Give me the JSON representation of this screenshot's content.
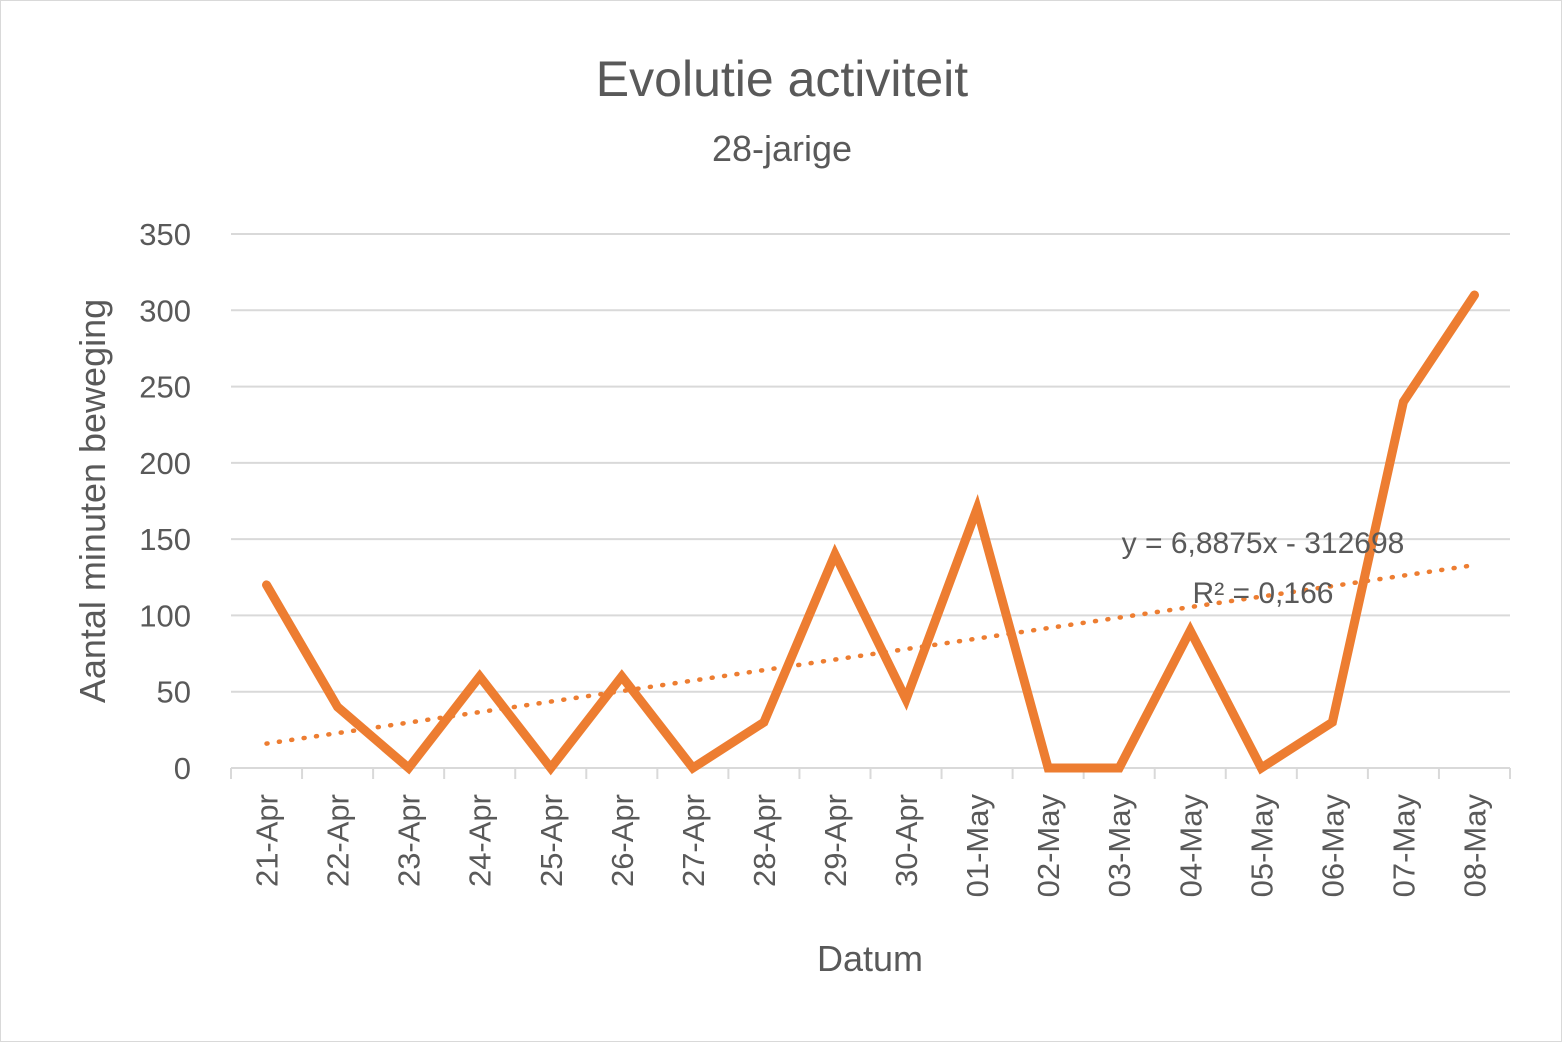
{
  "chart_data": {
    "type": "line",
    "title": "Evolutie activiteit",
    "subtitle": "28-jarige",
    "xlabel": "Datum",
    "ylabel": "Aantal minuten beweging",
    "categories": [
      "21-Apr",
      "22-Apr",
      "23-Apr",
      "24-Apr",
      "25-Apr",
      "26-Apr",
      "27-Apr",
      "28-Apr",
      "29-Apr",
      "30-Apr",
      "01-May",
      "02-May",
      "03-May",
      "04-May",
      "05-May",
      "06-May",
      "07-May",
      "08-May"
    ],
    "series": [
      {
        "values": [
          120,
          40,
          0,
          60,
          0,
          60,
          0,
          30,
          140,
          45,
          170,
          0,
          0,
          90,
          0,
          30,
          240,
          310
        ],
        "color": "#ED7D31"
      }
    ],
    "trendline": {
      "type": "linear",
      "style": "dotted",
      "color": "#ED7D31",
      "start": 16,
      "end": 133,
      "equation": "y = 6,8875x - 312698",
      "r2_label": "R² = 0,166"
    },
    "ylim": [
      0,
      350
    ],
    "yticks": [
      0,
      50,
      100,
      150,
      200,
      250,
      300,
      350
    ],
    "grid": true,
    "gridline_color": "#d9d9d9",
    "legend": "none"
  }
}
